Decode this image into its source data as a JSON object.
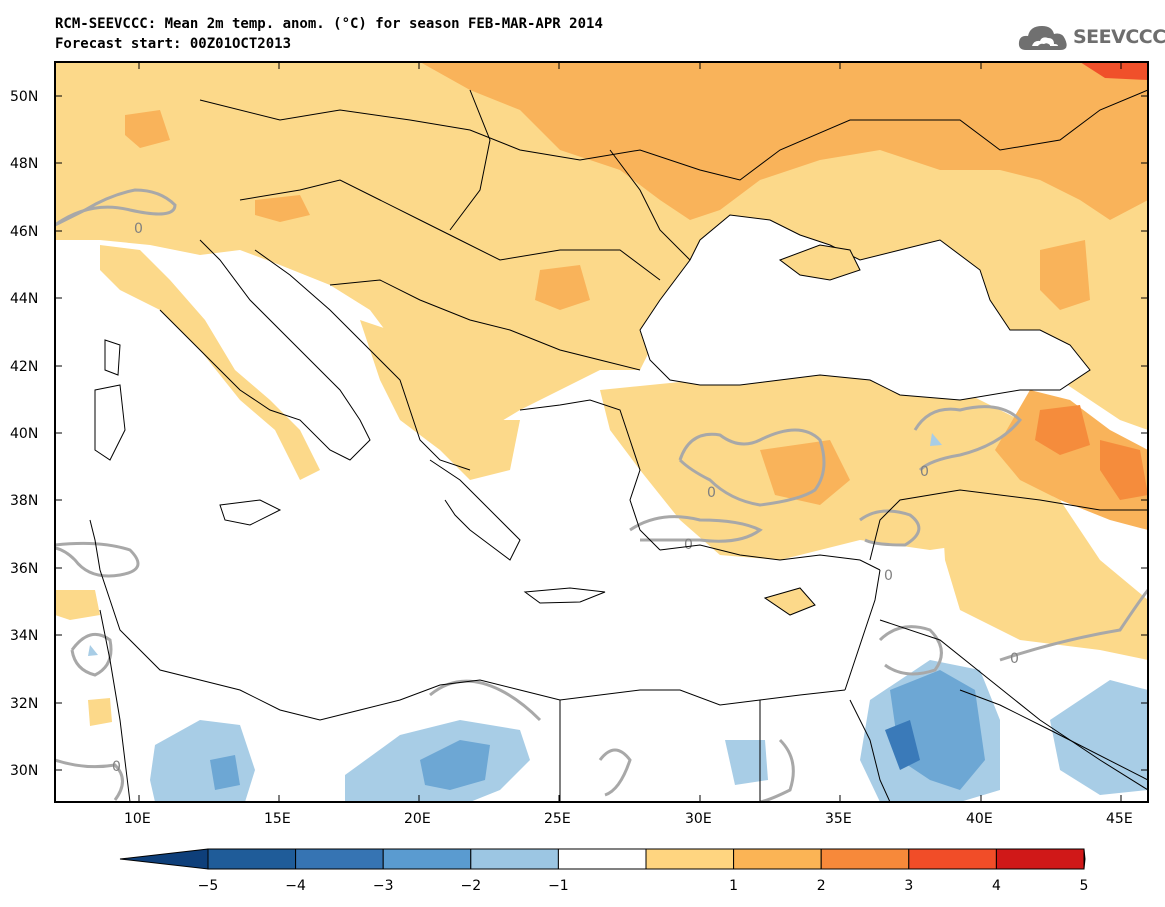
{
  "header": {
    "title": "RCM-SEEVCCC: Mean 2m temp. anom. (°C) for season FEB-MAR-APR 2014",
    "subtitle": "Forecast start: 00Z01OCT2013"
  },
  "logo": {
    "text": "SEEVCCC",
    "icon": "cloud-logo-icon"
  },
  "map": {
    "region": "Mediterranean / Balkans / Black Sea / Middle East",
    "lon_range": [
      7,
      46
    ],
    "lat_range": [
      29,
      51
    ],
    "lon_ticks": [
      "10E",
      "15E",
      "20E",
      "25E",
      "30E",
      "35E",
      "40E",
      "45E"
    ],
    "lat_ticks": [
      "50N",
      "48N",
      "46N",
      "44N",
      "42N",
      "40N",
      "38N",
      "36N",
      "34N",
      "32N",
      "30N"
    ],
    "contour_labels": [
      "0",
      "0",
      "0",
      "0",
      "0",
      "0",
      "0"
    ]
  },
  "colorbar": {
    "labels": [
      "−5",
      "−4",
      "−3",
      "−2",
      "−1",
      "1",
      "2",
      "3",
      "4",
      "5"
    ],
    "colors": [
      "#1f5c99",
      "#3674b3",
      "#5a9bd0",
      "#9cc6e3",
      "#ffffff",
      "#ffd580",
      "#fbb455",
      "#f7893a",
      "#f14d28",
      "#d01818"
    ],
    "min_arrow_color": "#0e3f7a",
    "max_arrow_color": "#c8101a"
  },
  "colors": {
    "warm_1": "#fcd98a",
    "warm_2": "#f9b35a",
    "warm_3": "#f58c3c",
    "warm_4": "#f0502a",
    "cold_1": "#a8cde6",
    "cold_2": "#6da7d4",
    "cold_3": "#3a7ab9",
    "contour_gray": "#a8a8a8"
  }
}
